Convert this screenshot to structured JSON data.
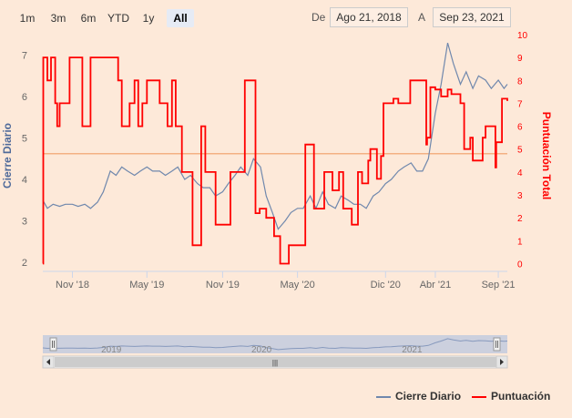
{
  "range_selector": {
    "buttons": [
      {
        "label": "1m",
        "active": false
      },
      {
        "label": "3m",
        "active": false
      },
      {
        "label": "6m",
        "active": false
      },
      {
        "label": "YTD",
        "active": false
      },
      {
        "label": "1y",
        "active": false
      },
      {
        "label": "All",
        "active": true
      }
    ],
    "from_label": "De",
    "from_value": "Ago 21, 2018",
    "to_label": "A",
    "to_value": "Sep 23, 2021"
  },
  "legend": {
    "items": [
      {
        "name": "Cierre Diario",
        "color": "#7088ad"
      },
      {
        "name": "Puntuación",
        "color": "#ff0000"
      }
    ]
  },
  "navigator": {
    "year_labels": [
      "2019",
      "2020",
      "2021"
    ],
    "scroll_handle": "|||"
  },
  "colors": {
    "background": "#fde9d9",
    "price": "#7088ad",
    "score": "#ff0000",
    "reference_line": "#f4b183",
    "left_axis_title": "#4f6a9a",
    "right_axis_title": "#ff0000"
  },
  "chart_data": {
    "type": "line",
    "x_ticks": [
      "Nov '18",
      "May '19",
      "Nov '19",
      "May '20",
      "Dic '20",
      "Abr '21",
      "Sep '21"
    ],
    "x_tick_dates": [
      "2018-11-01",
      "2019-05-01",
      "2019-11-01",
      "2020-05-01",
      "2020-12-01",
      "2021-04-01",
      "2021-09-01"
    ],
    "x_range": [
      "2018-08-21",
      "2021-09-23"
    ],
    "y_left": {
      "title": "Cierre Diario",
      "range": [
        1.8,
        7.5
      ],
      "ticks": [
        2,
        3,
        4,
        5,
        6,
        7
      ]
    },
    "y_right": {
      "title": "Puntuación Total",
      "range": [
        -0.3,
        10
      ],
      "ticks": [
        0,
        1,
        2,
        3,
        4,
        5,
        6,
        7,
        8,
        9,
        10
      ]
    },
    "reference_line": {
      "axis": "right",
      "value": 4.8
    },
    "grid": false,
    "legend_position": "bottom-right",
    "series": [
      {
        "name": "Cierre Diario",
        "axis": "left",
        "x": [
          "2018-08-21",
          "2018-09-01",
          "2018-09-15",
          "2018-10-01",
          "2018-10-15",
          "2018-11-01",
          "2018-11-15",
          "2018-12-01",
          "2018-12-15",
          "2019-01-01",
          "2019-01-15",
          "2019-02-01",
          "2019-02-15",
          "2019-03-01",
          "2019-03-15",
          "2019-04-01",
          "2019-04-15",
          "2019-05-01",
          "2019-05-15",
          "2019-06-01",
          "2019-06-15",
          "2019-07-01",
          "2019-07-15",
          "2019-08-01",
          "2019-08-15",
          "2019-09-01",
          "2019-09-15",
          "2019-10-01",
          "2019-10-15",
          "2019-11-01",
          "2019-11-15",
          "2019-12-01",
          "2019-12-15",
          "2020-01-01",
          "2020-01-15",
          "2020-02-01",
          "2020-02-15",
          "2020-03-01",
          "2020-03-15",
          "2020-04-01",
          "2020-04-15",
          "2020-05-01",
          "2020-05-15",
          "2020-06-01",
          "2020-06-15",
          "2020-07-01",
          "2020-07-15",
          "2020-08-01",
          "2020-08-15",
          "2020-09-01",
          "2020-09-15",
          "2020-10-01",
          "2020-10-15",
          "2020-11-01",
          "2020-11-15",
          "2020-12-01",
          "2020-12-15",
          "2021-01-01",
          "2021-01-15",
          "2021-02-01",
          "2021-02-15",
          "2021-03-01",
          "2021-03-15",
          "2021-04-01",
          "2021-04-15",
          "2021-05-01",
          "2021-05-15",
          "2021-06-01",
          "2021-06-15",
          "2021-07-01",
          "2021-07-15",
          "2021-08-01",
          "2021-08-15",
          "2021-09-01",
          "2021-09-15",
          "2021-09-23"
        ],
        "values": [
          3.5,
          3.3,
          3.4,
          3.35,
          3.4,
          3.4,
          3.35,
          3.4,
          3.3,
          3.45,
          3.7,
          4.2,
          4.1,
          4.3,
          4.2,
          4.1,
          4.2,
          4.3,
          4.2,
          4.2,
          4.1,
          4.2,
          4.3,
          4.0,
          4.1,
          3.9,
          3.8,
          3.8,
          3.6,
          3.7,
          3.9,
          4.1,
          4.3,
          4.1,
          4.5,
          4.3,
          3.6,
          3.2,
          2.8,
          3.0,
          3.2,
          3.3,
          3.3,
          3.6,
          3.3,
          3.7,
          3.4,
          3.3,
          3.6,
          3.5,
          3.4,
          3.4,
          3.3,
          3.6,
          3.7,
          3.9,
          4.0,
          4.2,
          4.3,
          4.4,
          4.2,
          4.2,
          4.5,
          5.6,
          6.3,
          7.3,
          6.8,
          6.3,
          6.6,
          6.2,
          6.5,
          6.4,
          6.2,
          6.4,
          6.2,
          6.3
        ]
      },
      {
        "name": "Puntuación",
        "axis": "right",
        "step": true,
        "x": [
          "2018-08-21",
          "2018-08-22",
          "2018-09-01",
          "2018-09-10",
          "2018-09-20",
          "2018-09-25",
          "2018-10-01",
          "2018-10-25",
          "2018-11-10",
          "2018-11-25",
          "2018-12-15",
          "2019-01-10",
          "2019-02-20",
          "2019-03-01",
          "2019-03-20",
          "2019-04-01",
          "2019-04-10",
          "2019-04-20",
          "2019-05-01",
          "2019-06-01",
          "2019-06-20",
          "2019-07-01",
          "2019-07-10",
          "2019-07-25",
          "2019-08-05",
          "2019-08-20",
          "2019-09-10",
          "2019-09-20",
          "2019-10-15",
          "2019-11-20",
          "2019-12-10",
          "2019-12-25",
          "2020-01-20",
          "2020-01-30",
          "2020-02-15",
          "2020-03-05",
          "2020-03-20",
          "2020-03-31",
          "2020-04-10",
          "2020-04-25",
          "2020-05-20",
          "2020-06-10",
          "2020-07-05",
          "2020-07-25",
          "2020-08-10",
          "2020-08-20",
          "2020-08-30",
          "2020-09-10",
          "2020-09-25",
          "2020-10-05",
          "2020-10-20",
          "2020-10-25",
          "2020-11-10",
          "2020-11-20",
          "2020-11-26",
          "2020-12-20",
          "2021-01-01",
          "2021-01-30",
          "2021-03-10",
          "2021-03-12",
          "2021-03-20",
          "2021-04-01",
          "2021-04-15",
          "2021-05-01",
          "2021-05-10",
          "2021-06-01",
          "2021-06-10",
          "2021-06-25",
          "2021-07-01",
          "2021-07-20",
          "2021-07-25",
          "2021-08-01",
          "2021-08-25",
          "2021-08-27",
          "2021-09-10",
          "2021-09-14",
          "2021-09-23"
        ],
        "values": [
          0,
          9,
          8,
          9,
          7,
          6,
          7,
          9,
          9,
          6,
          9,
          9,
          8,
          6,
          7,
          8,
          6,
          7,
          8,
          7,
          6,
          8,
          6,
          4,
          4,
          0.8,
          6,
          4,
          1.7,
          4,
          4,
          8,
          2.2,
          2.4,
          2,
          1.2,
          0,
          0,
          0.8,
          0.8,
          5.2,
          2.4,
          4,
          3.2,
          4,
          2.4,
          2.4,
          1.7,
          4,
          3.5,
          4.5,
          5,
          3.7,
          4.7,
          7,
          7.2,
          7,
          8,
          5.2,
          5.5,
          7.7,
          7.6,
          7.3,
          7.6,
          7.4,
          7,
          5,
          5.5,
          4.5,
          4.5,
          5.5,
          6,
          4.2,
          5.3,
          7.2,
          7.2,
          7.1
        ]
      }
    ]
  }
}
